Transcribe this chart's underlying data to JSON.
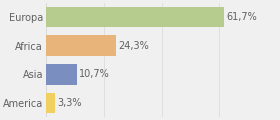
{
  "categories": [
    "Europa",
    "Africa",
    "Asia",
    "America"
  ],
  "values": [
    61.7,
    24.3,
    10.7,
    3.3
  ],
  "labels": [
    "61,7%",
    "24,3%",
    "10,7%",
    "3,3%"
  ],
  "bar_colors": [
    "#b5cc8e",
    "#e8b47a",
    "#7a8fbf",
    "#f0d060"
  ],
  "background_color": "#f0f0f0",
  "xlim": [
    0,
    80
  ],
  "bar_height": 0.72,
  "label_fontsize": 7.0,
  "cat_fontsize": 7.0,
  "grid_color": "#d8d8d8",
  "text_color": "#606060"
}
